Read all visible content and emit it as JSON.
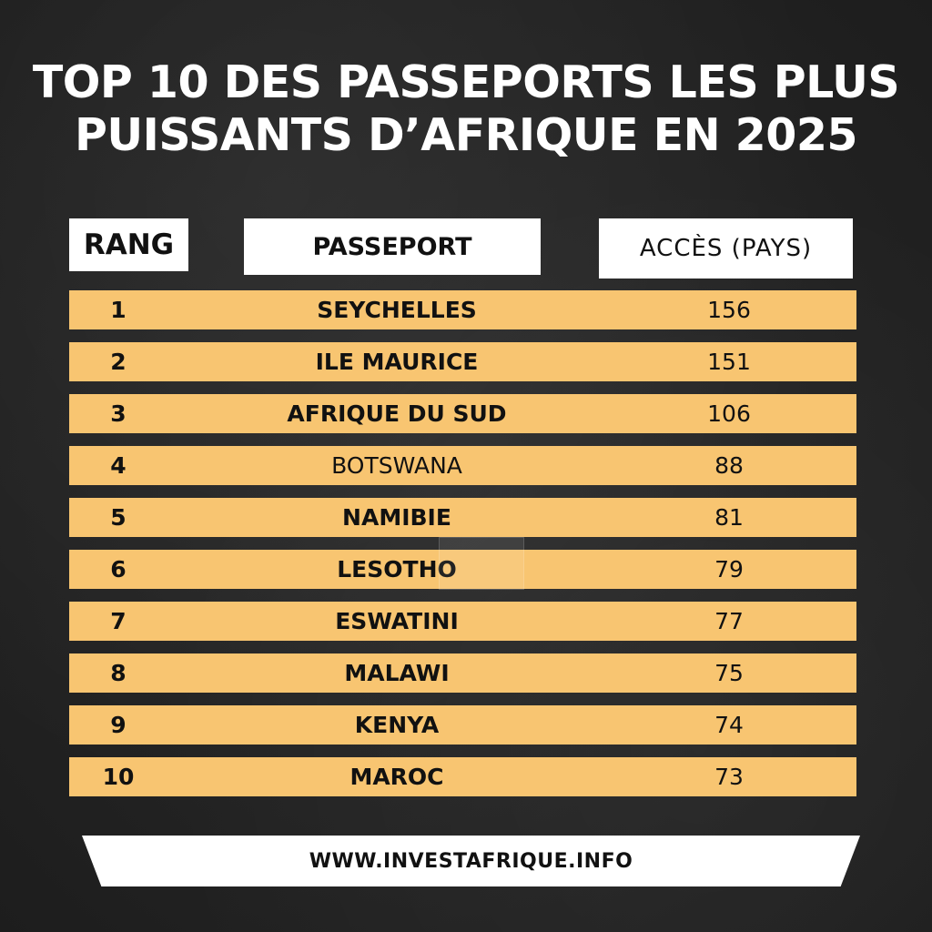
{
  "title": {
    "line1": "TOP 10 DES PASSEPORTS LES PLUS",
    "line2": "PUISSANTS D’AFRIQUE EN 2025"
  },
  "headers": {
    "rank": "RANG",
    "passport": "PASSEPORT",
    "access": "ACCÈS (PAYS)"
  },
  "chart_data": {
    "type": "table",
    "title": "TOP 10 DES PASSEPORTS LES PLUS PUISSANTS D’AFRIQUE EN 2025",
    "columns": [
      "RANG",
      "PASSEPORT",
      "ACCÈS (PAYS)"
    ],
    "rows": [
      {
        "rank": "1",
        "passport": "SEYCHELLES",
        "access": "156"
      },
      {
        "rank": "2",
        "passport": "ILE MAURICE",
        "access": "151"
      },
      {
        "rank": "3",
        "passport": "AFRIQUE DU SUD",
        "access": "106"
      },
      {
        "rank": "4",
        "passport": "BOTSWANA",
        "access": "88"
      },
      {
        "rank": "5",
        "passport": "NAMIBIE",
        "access": "81"
      },
      {
        "rank": "6",
        "passport": "LESOTHO",
        "access": "79"
      },
      {
        "rank": "7",
        "passport": "ESWATINI",
        "access": "77"
      },
      {
        "rank": "8",
        "passport": "MALAWI",
        "access": "75"
      },
      {
        "rank": "9",
        "passport": "KENYA",
        "access": "74"
      },
      {
        "rank": "10",
        "passport": "MAROC",
        "access": "73"
      }
    ]
  },
  "footer": {
    "url": "WWW.INVESTAFRIQUE.INFO"
  },
  "colors": {
    "background": "#262626",
    "row_fill": "#f8c571",
    "header_fill": "#ffffff",
    "title_text": "#ffffff"
  }
}
